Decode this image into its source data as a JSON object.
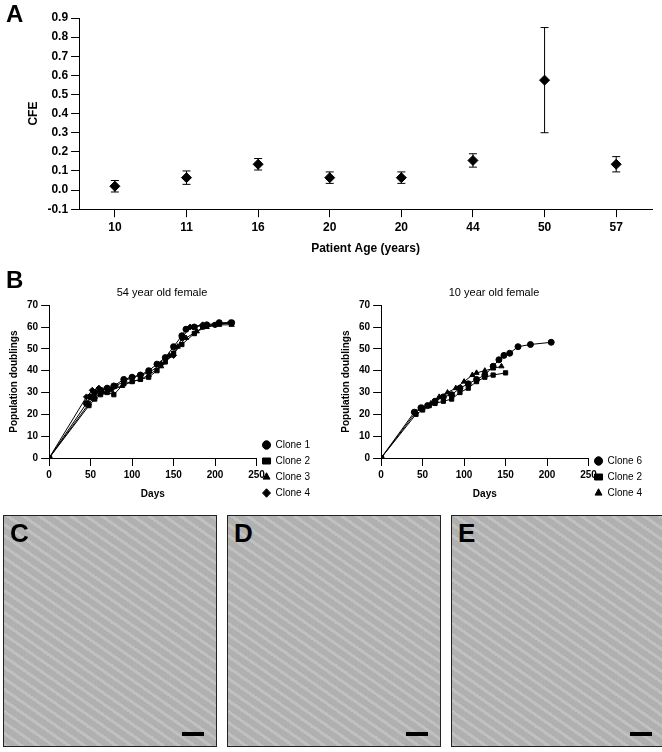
{
  "chart_data": [
    {
      "panel": "A",
      "type": "scatter",
      "x_label": "Patient Age (years)",
      "y_label": "CFE",
      "categories": [
        "10",
        "11",
        "16",
        "20",
        "20",
        "44",
        "50",
        "57"
      ],
      "values": [
        0.02,
        0.065,
        0.135,
        0.065,
        0.065,
        0.155,
        0.575,
        0.135
      ],
      "errors": [
        0.03,
        0.035,
        0.03,
        0.03,
        0.03,
        0.035,
        0.275,
        0.04
      ],
      "color": "#000000",
      "marker": "diamond",
      "ylim": [
        -0.1,
        0.9
      ],
      "yticks": [
        -0.1,
        {
          "value": 0,
          "label": "0.0"
        },
        0.1,
        0.2,
        0.3,
        0.4,
        0.5,
        0.6,
        0.7,
        0.8,
        0.9
      ],
      "grid": false
    },
    {
      "panel": "B",
      "type": "line",
      "title": "54 year old female",
      "x_label": "Days",
      "y_label": "Population doublings",
      "xlim": [
        0,
        250
      ],
      "xticks": [
        0,
        50,
        100,
        150,
        200,
        250
      ],
      "ylim": [
        0,
        70
      ],
      "yticks": [
        0,
        10,
        20,
        30,
        40,
        50,
        60,
        70
      ],
      "grid": false,
      "legend": "lower right",
      "color": "#000000",
      "series": [
        {
          "name": "Clone 1",
          "marker": "circle",
          "x": [
            0,
            45,
            50,
            55,
            62,
            70,
            78,
            90,
            100,
            110,
            120,
            130,
            140,
            150,
            160,
            165,
            175,
            190,
            205,
            220
          ],
          "values": [
            0,
            25,
            28,
            30,
            31,
            32,
            33,
            36,
            37,
            38,
            40,
            43,
            46,
            51,
            56,
            59,
            60,
            61,
            62,
            62
          ]
        },
        {
          "name": "Clone 2",
          "marker": "square",
          "x": [
            0,
            48,
            55,
            62,
            70,
            78,
            90,
            100,
            110,
            120,
            130,
            140,
            150,
            160,
            175,
            185,
            200,
            220
          ],
          "values": [
            0,
            24,
            27,
            29,
            30,
            29,
            34,
            35,
            36,
            37,
            40,
            44,
            48,
            52,
            57,
            60,
            61,
            62
          ]
        },
        {
          "name": "Clone 3",
          "marker": "triangle",
          "x": [
            0,
            48,
            55,
            65,
            75,
            88,
            100,
            110,
            120,
            135,
            145,
            155,
            165,
            178,
            190,
            205,
            220
          ],
          "values": [
            0,
            25,
            28,
            30,
            31,
            33,
            35,
            36,
            38,
            42,
            47,
            51,
            55,
            58,
            60,
            61,
            61
          ]
        },
        {
          "name": "Clone 4",
          "marker": "diamond",
          "x": [
            0,
            45,
            52,
            60,
            70,
            80,
            90,
            100,
            110,
            120,
            135,
            150,
            160,
            170,
            185,
            200,
            218
          ],
          "values": [
            0,
            28,
            31,
            32,
            32,
            33,
            35,
            37,
            38,
            39,
            43,
            47,
            55,
            60,
            61,
            61,
            62
          ]
        }
      ]
    },
    {
      "type": "line",
      "title": "10 year old female",
      "x_label": "Days",
      "y_label": "Population doublings",
      "xlim": [
        0,
        250
      ],
      "xticks": [
        0,
        50,
        100,
        150,
        200,
        250
      ],
      "ylim": [
        0,
        70
      ],
      "yticks": [
        0,
        10,
        20,
        30,
        40,
        50,
        60,
        70
      ],
      "grid": false,
      "legend": "lower right",
      "color": "#000000",
      "series": [
        {
          "name": "Clone 6",
          "marker": "circle",
          "x": [
            0,
            40,
            48,
            56,
            65,
            75,
            85,
            95,
            105,
            115,
            125,
            135,
            142,
            148,
            155,
            165,
            180,
            205
          ],
          "values": [
            0,
            21,
            23,
            24,
            26,
            28,
            29,
            32,
            34,
            36,
            38,
            42,
            45,
            47,
            48,
            51,
            52,
            53
          ]
        },
        {
          "name": "Clone 2",
          "marker": "square",
          "x": [
            0,
            42,
            50,
            58,
            65,
            75,
            85,
            95,
            105,
            115,
            125,
            135,
            150
          ],
          "values": [
            0,
            20,
            22,
            24,
            25,
            26,
            27,
            30,
            32,
            35,
            37,
            38,
            39
          ]
        },
        {
          "name": "Clone 4",
          "marker": "triangle",
          "x": [
            0,
            42,
            50,
            60,
            70,
            80,
            90,
            100,
            110,
            115,
            125,
            135,
            145
          ],
          "values": [
            0,
            21,
            23,
            25,
            28,
            30,
            32,
            35,
            38,
            39,
            40,
            41,
            42
          ]
        }
      ]
    }
  ],
  "images": [
    {
      "label": "C"
    },
    {
      "label": "D"
    },
    {
      "label": "E"
    }
  ]
}
